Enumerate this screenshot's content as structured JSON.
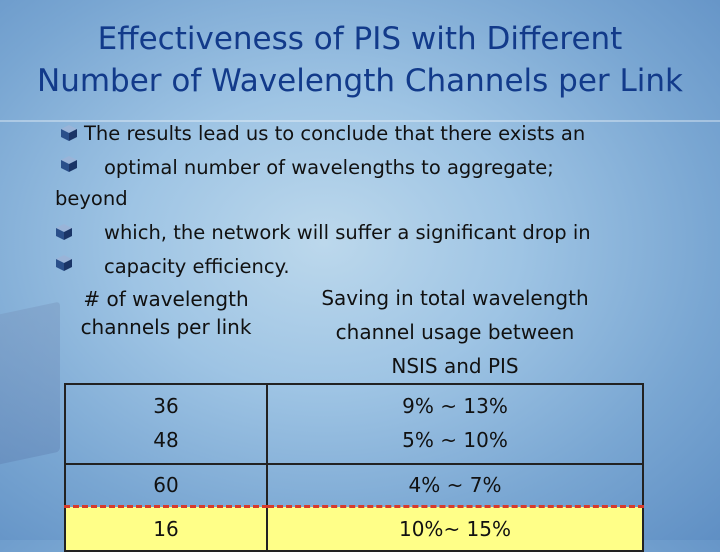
{
  "title": {
    "line1": "Effectiveness of PIS with Different",
    "line2": "Number of Wavelength Channels per Link"
  },
  "bullets": {
    "line1": "The results lead us to conclude that there exists an",
    "line2": "optimal number of wavelengths to aggregate;",
    "line3": "beyond",
    "line4": "which, the network will suffer a significant drop in",
    "line5": "capacity efficiency."
  },
  "table": {
    "header": {
      "col1_line1": "# of wavelength",
      "col1_line2": "channels per link",
      "col2_line1": "Saving in total wavelength",
      "col2_line2": "channel usage between",
      "col2_line3": "NSIS and PIS"
    },
    "rows": [
      {
        "channels": "36",
        "saving": "9% ~ 13%"
      },
      {
        "channels": "48",
        "saving": "5% ~ 10%"
      },
      {
        "channels": "60",
        "saving": "4% ~  7%"
      },
      {
        "channels": "16",
        "saving": "10%~ 15%"
      }
    ]
  },
  "colors": {
    "title": "#123a8a",
    "highlight": "#ffff88",
    "dashed_border": "#d83a2a"
  },
  "icons": {
    "bullet": "cube-bullet-icon"
  }
}
